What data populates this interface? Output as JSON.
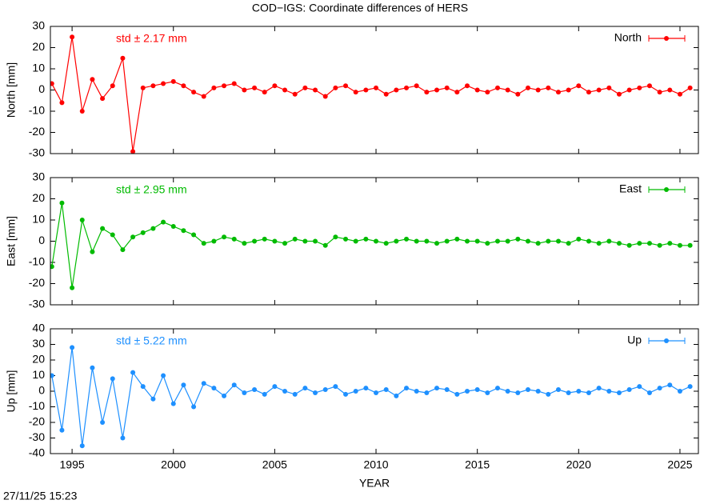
{
  "title": "COD−IGS: Coordinate differences of HERS",
  "timestamp": "27/11/25 15:23",
  "chart_data": [
    {
      "type": "line",
      "ylabel": "North [mm]",
      "annotation": "std ± 2.17 mm",
      "x": [
        1994.0,
        1994.5,
        1995.0,
        1995.5,
        1996.0,
        1996.5,
        1997.0,
        1997.5,
        1998.0,
        1998.5,
        1999.0,
        1999.5,
        2000.0,
        2000.5,
        2001.0,
        2001.5,
        2002.0,
        2002.5,
        2003.0,
        2003.5,
        2004.0,
        2004.5,
        2005.0,
        2005.5,
        2006.0,
        2006.5,
        2007.0,
        2007.5,
        2008.0,
        2008.5,
        2009.0,
        2009.5,
        2010.0,
        2010.5,
        2011.0,
        2011.5,
        2012.0,
        2012.5,
        2013.0,
        2013.5,
        2014.0,
        2014.5,
        2015.0,
        2015.5,
        2016.0,
        2016.5,
        2017.0,
        2017.5,
        2018.0,
        2018.5,
        2019.0,
        2019.5,
        2020.0,
        2020.5,
        2021.0,
        2021.5,
        2022.0,
        2022.5,
        2023.0,
        2023.5,
        2024.0,
        2024.5,
        2025.0,
        2025.5
      ],
      "series": [
        {
          "name": "North",
          "color": "#ff0000",
          "values": [
            3,
            -6,
            25,
            -10,
            5,
            -4,
            2,
            15,
            -29,
            1,
            2,
            3,
            4,
            2,
            -1,
            -3,
            1,
            2,
            3,
            0,
            1,
            -1,
            2,
            0,
            -2,
            1,
            0,
            -3,
            1,
            2,
            -1,
            0,
            1,
            -2,
            0,
            1,
            2,
            -1,
            0,
            1,
            -1,
            2,
            0,
            -1,
            1,
            0,
            -2,
            1,
            0,
            1,
            -1,
            0,
            2,
            -1,
            0,
            1,
            -2,
            0,
            1,
            2,
            -1,
            0,
            -2,
            1
          ]
        }
      ],
      "xlim": [
        1993.93,
        2025.91
      ],
      "ylim": [
        -30,
        30
      ],
      "yticks": [
        -30,
        -20,
        -10,
        0,
        10,
        20,
        30
      ],
      "xticks": [
        1995,
        2000,
        2005,
        2010,
        2015,
        2020,
        2025
      ]
    },
    {
      "type": "line",
      "ylabel": "East [mm]",
      "annotation": "std ± 2.95 mm",
      "x": [
        1994.0,
        1994.5,
        1995.0,
        1995.5,
        1996.0,
        1996.5,
        1997.0,
        1997.5,
        1998.0,
        1998.5,
        1999.0,
        1999.5,
        2000.0,
        2000.5,
        2001.0,
        2001.5,
        2002.0,
        2002.5,
        2003.0,
        2003.5,
        2004.0,
        2004.5,
        2005.0,
        2005.5,
        2006.0,
        2006.5,
        2007.0,
        2007.5,
        2008.0,
        2008.5,
        2009.0,
        2009.5,
        2010.0,
        2010.5,
        2011.0,
        2011.5,
        2012.0,
        2012.5,
        2013.0,
        2013.5,
        2014.0,
        2014.5,
        2015.0,
        2015.5,
        2016.0,
        2016.5,
        2017.0,
        2017.5,
        2018.0,
        2018.5,
        2019.0,
        2019.5,
        2020.0,
        2020.5,
        2021.0,
        2021.5,
        2022.0,
        2022.5,
        2023.0,
        2023.5,
        2024.0,
        2024.5,
        2025.0,
        2025.5
      ],
      "series": [
        {
          "name": "East",
          "color": "#00bb00",
          "values": [
            -12,
            18,
            -22,
            10,
            -5,
            6,
            3,
            -4,
            2,
            4,
            6,
            9,
            7,
            5,
            3,
            -1,
            0,
            2,
            1,
            -1,
            0,
            1,
            0,
            -1,
            1,
            0,
            0,
            -2,
            2,
            1,
            0,
            1,
            0,
            -1,
            0,
            1,
            0,
            0,
            -1,
            0,
            1,
            0,
            0,
            -1,
            0,
            0,
            1,
            0,
            -1,
            0,
            0,
            -1,
            1,
            0,
            -1,
            0,
            -1,
            -2,
            -1,
            -1,
            -2,
            -1,
            -2,
            -2
          ]
        }
      ],
      "xlim": [
        1993.93,
        2025.91
      ],
      "ylim": [
        -30,
        30
      ],
      "yticks": [
        -30,
        -20,
        -10,
        0,
        10,
        20,
        30
      ],
      "xticks": [
        1995,
        2000,
        2005,
        2010,
        2015,
        2020,
        2025
      ]
    },
    {
      "type": "line",
      "ylabel": "Up [mm]",
      "annotation": "std ± 5.22 mm",
      "xlabel": "YEAR",
      "x": [
        1994.0,
        1994.5,
        1995.0,
        1995.5,
        1996.0,
        1996.5,
        1997.0,
        1997.5,
        1998.0,
        1998.5,
        1999.0,
        1999.5,
        2000.0,
        2000.5,
        2001.0,
        2001.5,
        2002.0,
        2002.5,
        2003.0,
        2003.5,
        2004.0,
        2004.5,
        2005.0,
        2005.5,
        2006.0,
        2006.5,
        2007.0,
        2007.5,
        2008.0,
        2008.5,
        2009.0,
        2009.5,
        2010.0,
        2010.5,
        2011.0,
        2011.5,
        2012.0,
        2012.5,
        2013.0,
        2013.5,
        2014.0,
        2014.5,
        2015.0,
        2015.5,
        2016.0,
        2016.5,
        2017.0,
        2017.5,
        2018.0,
        2018.5,
        2019.0,
        2019.5,
        2020.0,
        2020.5,
        2021.0,
        2021.5,
        2022.0,
        2022.5,
        2023.0,
        2023.5,
        2024.0,
        2024.5,
        2025.0,
        2025.5
      ],
      "series": [
        {
          "name": "Up",
          "color": "#1e90ff",
          "values": [
            10,
            -25,
            28,
            -35,
            15,
            -20,
            8,
            -30,
            12,
            3,
            -5,
            10,
            -8,
            4,
            -10,
            5,
            2,
            -3,
            4,
            -1,
            1,
            -2,
            3,
            0,
            -2,
            2,
            -1,
            1,
            3,
            -2,
            0,
            2,
            -1,
            1,
            -3,
            2,
            0,
            -1,
            2,
            1,
            -2,
            0,
            1,
            -1,
            2,
            0,
            -1,
            1,
            0,
            -2,
            1,
            -1,
            0,
            -1,
            2,
            0,
            -1,
            1,
            3,
            -1,
            2,
            4,
            0,
            3
          ]
        }
      ],
      "xlim": [
        1993.93,
        2025.91
      ],
      "ylim": [
        -40,
        40
      ],
      "yticks": [
        -40,
        -30,
        -20,
        -10,
        0,
        10,
        20,
        30,
        40
      ],
      "xticks": [
        1995,
        2000,
        2005,
        2010,
        2015,
        2020,
        2025
      ]
    }
  ]
}
